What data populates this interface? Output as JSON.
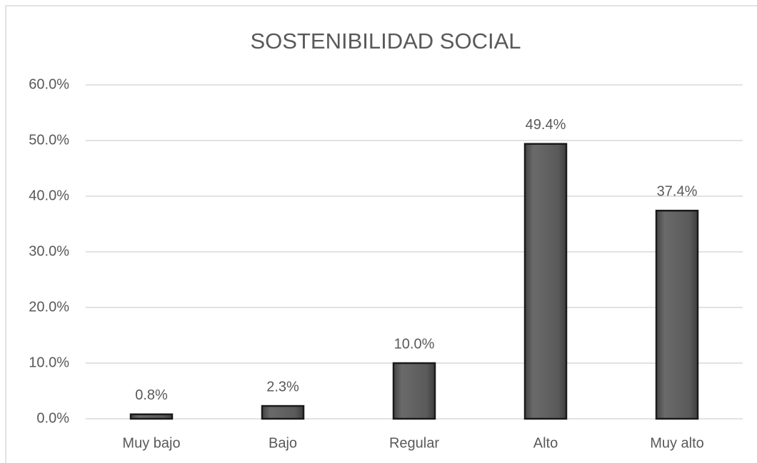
{
  "chart_data": {
    "type": "bar",
    "title": "SOSTENIBILIDAD SOCIAL",
    "categories": [
      "Muy bajo",
      "Bajo",
      "Regular",
      "Alto",
      "Muy alto"
    ],
    "values": [
      0.8,
      2.3,
      10.0,
      49.4,
      37.4
    ],
    "value_labels": [
      "0.8%",
      "2.3%",
      "10.0%",
      "49.4%",
      "37.4%"
    ],
    "color": "#5a5a5a",
    "ylim": [
      0,
      60
    ],
    "yticks": [
      {
        "value": 0,
        "label": "0.0%"
      },
      {
        "value": 10,
        "label": "10.0%"
      },
      {
        "value": 20,
        "label": "20.0%"
      },
      {
        "value": 30,
        "label": "30.0%"
      },
      {
        "value": 40,
        "label": "40.0%"
      },
      {
        "value": 50,
        "label": "50.0%"
      },
      {
        "value": 60,
        "label": "60.0%"
      }
    ],
    "grid": true
  }
}
